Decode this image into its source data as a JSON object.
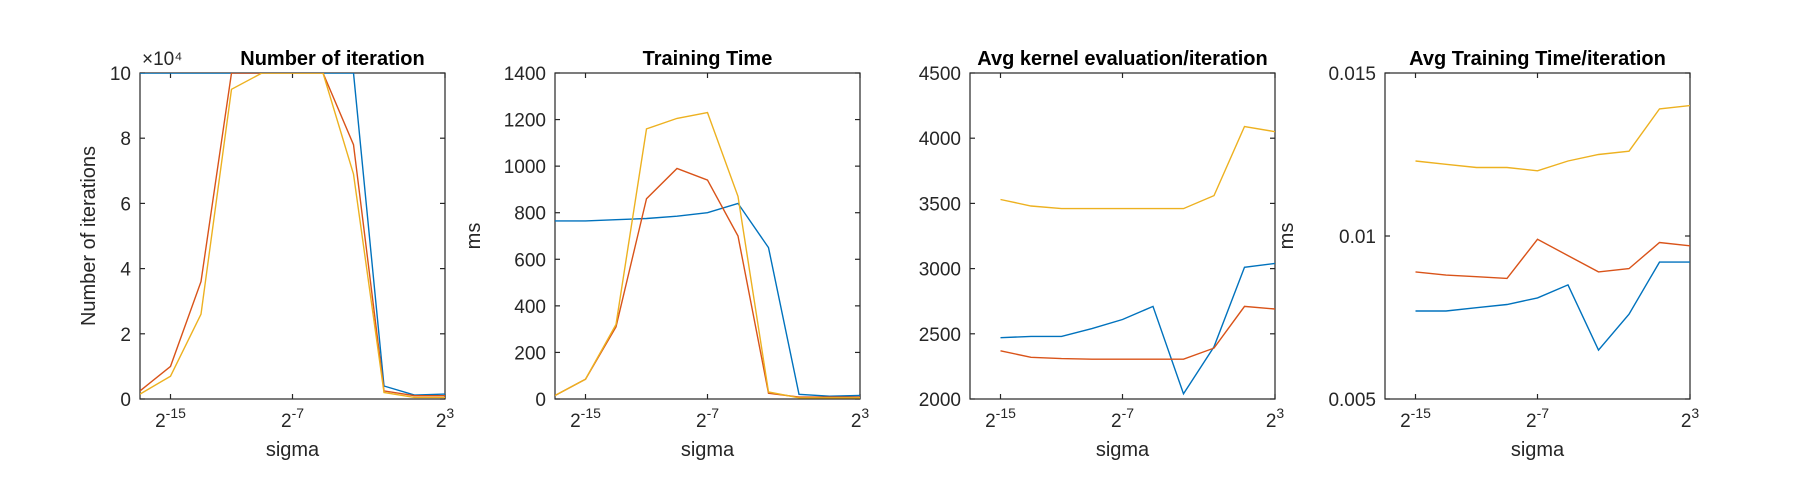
{
  "figure": {
    "panels": [
      {
        "title": "Number of iteration",
        "xlabel": "sigma",
        "ylabel": "Number of iterations",
        "exponent_label": "×10⁴",
        "y_tick_values": [
          0,
          2,
          4,
          6,
          8,
          10
        ],
        "y_tick_labels": [
          "0",
          "2",
          "4",
          "6",
          "8",
          "10"
        ]
      },
      {
        "title": "Training Time",
        "xlabel": "sigma",
        "ylabel": "ms",
        "y_tick_values": [
          0,
          200,
          400,
          600,
          800,
          1000,
          1200,
          1400
        ],
        "y_tick_labels": [
          "0",
          "200",
          "400",
          "600",
          "800",
          "1000",
          "1200",
          "1400"
        ]
      },
      {
        "title": "Avg kernel evaluation/iteration",
        "xlabel": "sigma",
        "ylabel": "",
        "y_tick_values": [
          2000,
          2500,
          3000,
          3500,
          4000,
          4500
        ],
        "y_tick_labels": [
          "2000",
          "2500",
          "3000",
          "3500",
          "4000",
          "4500"
        ]
      },
      {
        "title": "Avg Training Time/iteration",
        "xlabel": "sigma",
        "ylabel": "ms",
        "y_tick_values": [
          0.005,
          0.01,
          0.015
        ],
        "y_tick_labels": [
          "0.005",
          "0.01",
          "0.015"
        ]
      }
    ],
    "x_tick_values": [
      -15,
      -7,
      3
    ],
    "x_tick_labels": [
      "2^-15",
      "2^-7",
      "2^3"
    ],
    "colors": [
      "#0072BD",
      "#D95319",
      "#EDB120"
    ]
  },
  "chart_data": [
    {
      "type": "line",
      "title": "Number of iteration",
      "xlabel": "sigma",
      "ylabel": "Number of iterations",
      "x_scale": "log2",
      "y_scale_factor": 10000,
      "x": [
        -17,
        -15,
        -13,
        -11,
        -9,
        -7,
        -5,
        -3,
        -1,
        1,
        3
      ],
      "xlim": [
        -17,
        3
      ],
      "ylim": [
        0,
        10
      ],
      "series": [
        {
          "values": [
            10,
            10,
            10,
            10,
            10,
            10,
            10,
            10,
            0.4,
            0.12,
            0.15
          ]
        },
        {
          "values": [
            0.25,
            1.0,
            3.6,
            10,
            10,
            10,
            10,
            7.8,
            0.25,
            0.1,
            0.1
          ]
        },
        {
          "values": [
            0.15,
            0.7,
            2.6,
            9.5,
            10,
            10,
            10,
            6.9,
            0.2,
            0.05,
            0.05
          ]
        }
      ]
    },
    {
      "type": "line",
      "title": "Training Time",
      "xlabel": "sigma",
      "ylabel": "ms",
      "x_scale": "log2",
      "x": [
        -17,
        -15,
        -13,
        -11,
        -9,
        -7,
        -5,
        -3,
        -1,
        1,
        3
      ],
      "xlim": [
        -17,
        3
      ],
      "ylim": [
        0,
        1400
      ],
      "series": [
        {
          "values": [
            765,
            765,
            770,
            775,
            785,
            800,
            840,
            650,
            20,
            12,
            15
          ]
        },
        {
          "values": [
            15,
            85,
            310,
            860,
            990,
            940,
            700,
            25,
            8,
            8,
            8
          ]
        },
        {
          "values": [
            15,
            85,
            320,
            1160,
            1205,
            1230,
            870,
            30,
            5,
            5,
            5
          ]
        }
      ]
    },
    {
      "type": "line",
      "title": "Avg kernel evaluation/iteration",
      "xlabel": "sigma",
      "ylabel": "",
      "x_scale": "log2",
      "x": [
        -15,
        -13,
        -11,
        -9,
        -7,
        -5,
        -3,
        -1,
        1,
        3
      ],
      "xlim": [
        -17,
        3
      ],
      "ylim": [
        2000,
        4500
      ],
      "series": [
        {
          "values": [
            2470,
            2480,
            2480,
            2540,
            2610,
            2710,
            2040,
            2400,
            3010,
            3040
          ]
        },
        {
          "values": [
            2370,
            2320,
            2310,
            2305,
            2305,
            2305,
            2305,
            2390,
            2710,
            2690
          ]
        },
        {
          "values": [
            3530,
            3480,
            3460,
            3460,
            3460,
            3460,
            3460,
            3560,
            4090,
            4050
          ]
        }
      ]
    },
    {
      "type": "line",
      "title": "Avg Training Time/iteration",
      "xlabel": "sigma",
      "ylabel": "ms",
      "x_scale": "log2",
      "x": [
        -15,
        -13,
        -11,
        -9,
        -7,
        -5,
        -3,
        -1,
        1,
        3
      ],
      "xlim": [
        -17,
        3
      ],
      "ylim": [
        0.005,
        0.015
      ],
      "series": [
        {
          "values": [
            0.0077,
            0.0077,
            0.0078,
            0.0079,
            0.0081,
            0.0085,
            0.0065,
            0.0076,
            0.0092,
            0.0092
          ]
        },
        {
          "values": [
            0.0089,
            0.0088,
            0.00875,
            0.0087,
            0.0099,
            0.0094,
            0.0089,
            0.009,
            0.0098,
            0.0097
          ]
        },
        {
          "values": [
            0.0123,
            0.0122,
            0.0121,
            0.0121,
            0.012,
            0.0123,
            0.0125,
            0.0126,
            0.0139,
            0.014
          ]
        }
      ]
    }
  ]
}
